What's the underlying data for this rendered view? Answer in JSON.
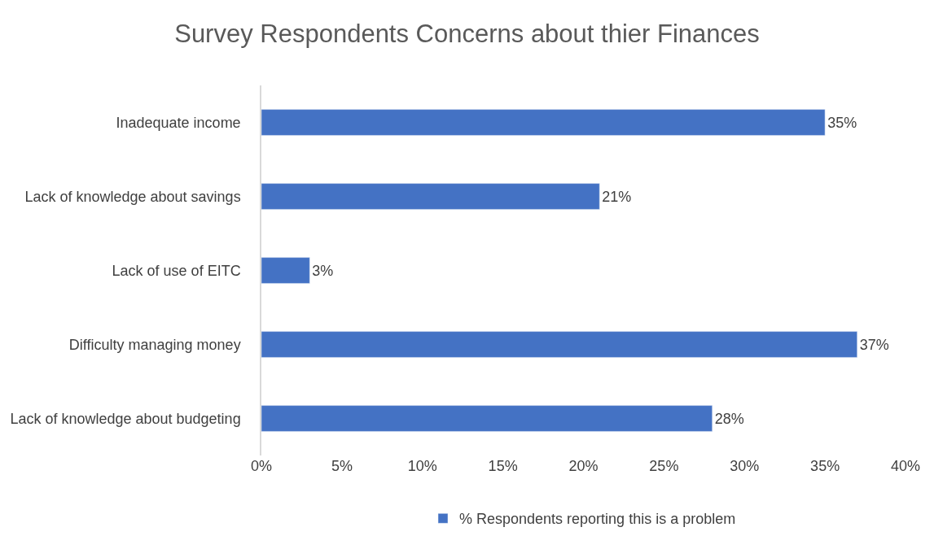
{
  "chart_data": {
    "type": "bar",
    "orientation": "horizontal",
    "title": "Survey Respondents Concerns about thier Finances",
    "categories": [
      "Inadequate income",
      "Lack of knowledge about savings",
      "Lack of use of EITC",
      "Difficulty managing money",
      "Lack of knowledge about budgeting"
    ],
    "series": [
      {
        "name": "% Respondents reporting this is a problem",
        "color": "#4472c4",
        "values": [
          35,
          21,
          3,
          37,
          28
        ],
        "value_labels": [
          "35%",
          "21%",
          "3%",
          "37%",
          "28%"
        ]
      }
    ],
    "xlim": [
      0,
      40
    ],
    "xticks": [
      {
        "value": 0,
        "label": "0%"
      },
      {
        "value": 5,
        "label": "5%"
      },
      {
        "value": 10,
        "label": "10%"
      },
      {
        "value": 15,
        "label": "15%"
      },
      {
        "value": 20,
        "label": "20%"
      },
      {
        "value": 25,
        "label": "25%"
      },
      {
        "value": 30,
        "label": "30%"
      },
      {
        "value": 35,
        "label": "35%"
      },
      {
        "value": 40,
        "label": "40%"
      }
    ],
    "grid": false,
    "legend": "bottom"
  }
}
